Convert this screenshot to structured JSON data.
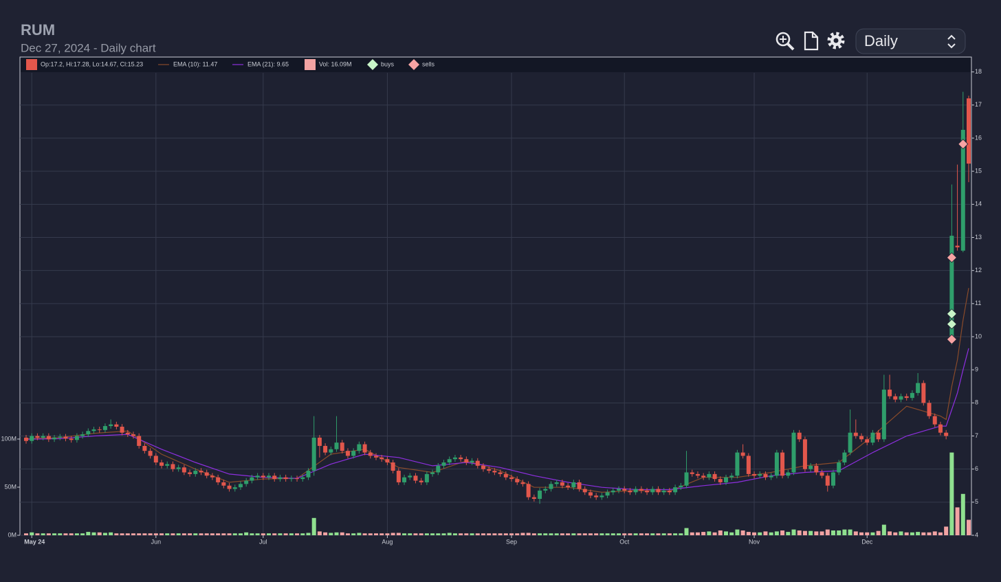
{
  "controls": {
    "period": "Daily"
  },
  "chart_data": {
    "type": "candlestick",
    "title": "RUM",
    "subtitle": "Dec 27, 2024 - Daily chart",
    "categories": [
      null,
      "May 24",
      null,
      null,
      null,
      null,
      null,
      null,
      null,
      null,
      null,
      null,
      null,
      null,
      null,
      null,
      null,
      null,
      null,
      null,
      null,
      null,
      null,
      "Jun",
      null,
      null,
      null,
      null,
      null,
      null,
      null,
      null,
      null,
      null,
      null,
      null,
      null,
      null,
      null,
      null,
      null,
      null,
      "Jul",
      null,
      null,
      null,
      null,
      null,
      null,
      null,
      null,
      null,
      null,
      null,
      null,
      null,
      null,
      null,
      null,
      null,
      null,
      null,
      null,
      null,
      "Aug",
      null,
      null,
      null,
      null,
      null,
      null,
      null,
      null,
      null,
      null,
      null,
      null,
      null,
      null,
      null,
      null,
      null,
      null,
      null,
      null,
      null,
      "Sep",
      null,
      null,
      null,
      null,
      null,
      null,
      null,
      null,
      null,
      null,
      null,
      null,
      null,
      null,
      null,
      null,
      null,
      null,
      null,
      "Oct",
      null,
      null,
      null,
      null,
      null,
      null,
      null,
      null,
      null,
      null,
      null,
      null,
      null,
      null,
      null,
      null,
      null,
      null,
      null,
      null,
      null,
      null,
      "Nov",
      null,
      null,
      null,
      null,
      null,
      null,
      null,
      null,
      null,
      null,
      null,
      null,
      null,
      null,
      null,
      null,
      null,
      null,
      null,
      "Dec",
      null,
      null,
      null,
      null,
      null,
      null,
      null,
      null,
      null,
      null,
      null,
      null,
      null,
      null,
      null,
      null,
      null,
      null
    ],
    "ylim": [
      4,
      18.45
    ],
    "yticks": [
      4,
      5,
      6,
      7,
      8,
      9,
      10,
      11,
      12,
      13,
      14,
      15,
      16,
      17,
      18
    ],
    "y2lim": [
      0,
      497
    ],
    "y2ticks": [
      {
        "value": 0,
        "label": "0M"
      },
      {
        "value": 50,
        "label": "50M"
      },
      {
        "value": 100,
        "label": "100M"
      }
    ],
    "grid": true,
    "candles": {
      "name": "Op:17.2, Hi:17.28, Lo:14.67, Cl:15.23",
      "up_color": "#2f9e6b",
      "down_color": "#e2574c",
      "open": [
        6.95,
        6.85,
        7.0,
        6.95,
        7.0,
        6.9,
        6.95,
        6.98,
        6.92,
        6.88,
        7.0,
        7.05,
        7.15,
        7.2,
        7.18,
        7.3,
        7.35,
        7.28,
        7.1,
        7.05,
        7.0,
        6.7,
        6.55,
        6.4,
        6.2,
        6.1,
        6.15,
        6.0,
        6.05,
        5.9,
        5.85,
        5.95,
        5.9,
        5.8,
        5.75,
        5.6,
        5.5,
        5.4,
        5.45,
        5.55,
        5.65,
        5.75,
        5.8,
        5.75,
        5.8,
        5.7,
        5.75,
        5.7,
        5.72,
        5.7,
        5.75,
        5.95,
        6.95,
        6.7,
        6.5,
        6.6,
        6.8,
        6.55,
        6.4,
        6.55,
        6.75,
        6.5,
        6.4,
        6.35,
        6.3,
        6.2,
        5.95,
        5.6,
        5.75,
        5.8,
        5.65,
        5.6,
        5.85,
        5.9,
        6.1,
        6.2,
        6.3,
        6.35,
        6.3,
        6.2,
        6.25,
        6.1,
        6.0,
        5.95,
        5.9,
        5.85,
        5.75,
        5.7,
        5.6,
        5.55,
        5.15,
        5.1,
        5.35,
        5.4,
        5.55,
        5.6,
        5.5,
        5.45,
        5.6,
        5.4,
        5.3,
        5.2,
        5.15,
        5.2,
        5.3,
        5.35,
        5.4,
        5.35,
        5.3,
        5.4,
        5.35,
        5.3,
        5.4,
        5.3,
        5.35,
        5.3,
        5.45,
        5.5,
        5.9,
        5.85,
        5.8,
        5.75,
        5.85,
        5.7,
        5.6,
        5.75,
        5.8,
        6.5,
        6.4,
        5.85,
        5.8,
        5.85,
        5.75,
        5.8,
        6.5,
        5.8,
        5.9,
        7.1,
        6.9,
        6.0,
        6.1,
        5.9,
        5.8,
        5.5,
        5.9,
        6.2,
        6.5,
        7.1,
        7.0,
        6.9,
        6.8,
        7.1,
        6.9,
        8.4,
        8.2,
        8.1,
        8.2,
        8.15,
        8.3,
        8.6,
        8.0,
        7.6,
        7.35,
        7.1,
        10.0,
        12.75,
        12.6,
        17.2
      ],
      "high": [
        7.03,
        7.08,
        7.08,
        7.08,
        7.08,
        7.03,
        7.06,
        7.06,
        7.0,
        7.08,
        7.13,
        7.23,
        7.28,
        7.28,
        7.38,
        7.5,
        7.43,
        7.36,
        7.18,
        7.13,
        7.08,
        6.78,
        6.63,
        6.48,
        6.28,
        6.23,
        6.23,
        6.13,
        6.13,
        5.98,
        6.03,
        6.03,
        5.98,
        5.88,
        5.83,
        5.68,
        5.58,
        5.53,
        5.63,
        5.73,
        5.83,
        5.88,
        5.88,
        5.88,
        5.88,
        5.83,
        5.83,
        5.8,
        5.8,
        5.83,
        6.03,
        7.6,
        7.03,
        6.78,
        6.68,
        7.6,
        6.88,
        6.63,
        6.63,
        6.83,
        6.83,
        6.58,
        6.48,
        6.43,
        6.38,
        6.28,
        6.03,
        5.83,
        5.88,
        5.88,
        5.73,
        5.93,
        5.98,
        6.18,
        6.28,
        6.38,
        6.43,
        6.43,
        6.38,
        6.33,
        6.33,
        6.18,
        6.08,
        6.03,
        5.98,
        5.93,
        5.83,
        5.78,
        5.68,
        5.63,
        5.23,
        5.43,
        5.48,
        5.63,
        5.68,
        5.68,
        5.58,
        5.68,
        5.68,
        5.48,
        5.38,
        5.28,
        5.28,
        5.38,
        5.43,
        5.48,
        5.48,
        5.43,
        5.48,
        5.48,
        5.43,
        5.48,
        5.48,
        5.43,
        5.43,
        5.53,
        5.58,
        6.55,
        5.98,
        5.93,
        5.88,
        5.93,
        5.93,
        5.78,
        5.83,
        5.88,
        6.58,
        6.75,
        6.48,
        5.93,
        5.93,
        5.93,
        5.88,
        6.58,
        6.58,
        5.98,
        7.18,
        7.18,
        6.98,
        6.18,
        6.18,
        5.98,
        5.88,
        5.98,
        6.28,
        6.58,
        7.8,
        7.5,
        7.08,
        6.98,
        7.18,
        7.18,
        8.85,
        8.85,
        8.28,
        8.28,
        8.28,
        8.38,
        8.9,
        8.68,
        8.08,
        7.68,
        7.43,
        7.18,
        14.6,
        15.2,
        17.4,
        17.28
      ],
      "low": [
        6.77,
        6.77,
        6.87,
        6.87,
        6.82,
        6.82,
        6.87,
        6.84,
        6.8,
        6.8,
        6.92,
        6.97,
        7.07,
        7.1,
        7.1,
        7.22,
        7.2,
        7.02,
        6.97,
        6.92,
        6.62,
        6.47,
        6.32,
        6.12,
        6.02,
        6.02,
        5.92,
        5.92,
        5.82,
        5.77,
        5.77,
        5.82,
        5.72,
        5.67,
        5.52,
        5.42,
        5.32,
        5.32,
        5.37,
        5.47,
        5.57,
        5.67,
        5.67,
        5.67,
        5.62,
        5.62,
        5.62,
        5.62,
        5.62,
        5.62,
        5.67,
        5.8,
        6.35,
        6.42,
        6.42,
        6.52,
        6.47,
        6.32,
        6.32,
        6.47,
        6.42,
        6.32,
        6.27,
        6.22,
        6.12,
        5.87,
        5.52,
        5.52,
        5.67,
        5.57,
        5.52,
        5.52,
        5.77,
        5.82,
        6.02,
        6.12,
        6.22,
        6.22,
        6.12,
        6.12,
        6.02,
        5.92,
        5.87,
        5.82,
        5.77,
        5.67,
        5.62,
        5.52,
        5.47,
        5.07,
        5.02,
        4.95,
        5.27,
        5.32,
        5.47,
        5.42,
        5.37,
        5.37,
        5.32,
        5.22,
        5.12,
        5.07,
        5.07,
        5.12,
        5.22,
        5.27,
        5.27,
        5.22,
        5.22,
        5.27,
        5.22,
        5.22,
        5.22,
        5.22,
        5.22,
        5.22,
        5.37,
        5.42,
        5.77,
        5.72,
        5.67,
        5.67,
        5.62,
        5.52,
        5.52,
        5.67,
        5.72,
        6.32,
        5.77,
        5.72,
        5.72,
        5.67,
        5.67,
        5.72,
        5.72,
        5.72,
        5.82,
        6.82,
        5.92,
        5.92,
        5.82,
        5.72,
        5.32,
        5.42,
        5.82,
        6.12,
        6.42,
        6.92,
        6.82,
        6.72,
        6.72,
        6.82,
        6.82,
        8.12,
        8.02,
        8.02,
        8.07,
        8.07,
        8.22,
        7.92,
        7.52,
        7.27,
        7.02,
        6.9,
        9.75,
        12.6,
        12.55,
        14.67
      ],
      "close": [
        6.85,
        7.0,
        6.95,
        7.0,
        6.9,
        6.95,
        6.98,
        6.92,
        6.88,
        7.0,
        7.05,
        7.15,
        7.2,
        7.18,
        7.3,
        7.35,
        7.28,
        7.1,
        7.05,
        7.0,
        6.7,
        6.55,
        6.4,
        6.2,
        6.1,
        6.15,
        6.0,
        6.05,
        5.9,
        5.85,
        5.95,
        5.9,
        5.8,
        5.75,
        5.6,
        5.5,
        5.4,
        5.45,
        5.55,
        5.65,
        5.75,
        5.8,
        5.75,
        5.8,
        5.7,
        5.75,
        5.7,
        5.72,
        5.7,
        5.75,
        5.95,
        6.95,
        6.7,
        6.5,
        6.6,
        6.8,
        6.55,
        6.4,
        6.55,
        6.75,
        6.5,
        6.4,
        6.35,
        6.3,
        6.2,
        5.95,
        5.6,
        5.75,
        5.8,
        5.65,
        5.6,
        5.85,
        5.9,
        6.1,
        6.2,
        6.3,
        6.35,
        6.3,
        6.2,
        6.25,
        6.1,
        6.0,
        5.95,
        5.9,
        5.85,
        5.75,
        5.7,
        5.6,
        5.55,
        5.15,
        5.1,
        5.35,
        5.4,
        5.55,
        5.6,
        5.5,
        5.45,
        5.6,
        5.4,
        5.3,
        5.2,
        5.15,
        5.2,
        5.3,
        5.35,
        5.4,
        5.35,
        5.3,
        5.4,
        5.35,
        5.3,
        5.4,
        5.3,
        5.35,
        5.3,
        5.45,
        5.5,
        5.9,
        5.85,
        5.8,
        5.75,
        5.85,
        5.7,
        5.6,
        5.75,
        5.8,
        6.5,
        6.4,
        5.85,
        5.8,
        5.85,
        5.75,
        5.8,
        6.5,
        5.8,
        5.9,
        7.1,
        6.9,
        6.0,
        6.1,
        5.9,
        5.8,
        5.5,
        5.9,
        6.2,
        6.5,
        7.1,
        7.0,
        6.9,
        6.8,
        7.1,
        6.9,
        8.4,
        8.2,
        8.1,
        8.2,
        8.15,
        8.3,
        8.6,
        8.0,
        7.6,
        7.35,
        7.1,
        7.0,
        13.05,
        12.7,
        16.25,
        15.23
      ]
    },
    "volume": {
      "name": "Vol: 16.09M",
      "axis": "y2",
      "up_color": "#8fe08f",
      "down_color": "#f2a3a3",
      "values": [
        2,
        3,
        2,
        2,
        2,
        2,
        2,
        2,
        2,
        2,
        2,
        3.5,
        3,
        3,
        2.5,
        3,
        2,
        2,
        2,
        2,
        2,
        2,
        2,
        2,
        2,
        2,
        2,
        2,
        2,
        2,
        2,
        2,
        2,
        2,
        2,
        2,
        2,
        2,
        2,
        3,
        2,
        2,
        2,
        2,
        2,
        2,
        2,
        2,
        2,
        2,
        2.5,
        18,
        4,
        3,
        2.5,
        3,
        3,
        2,
        2,
        2.5,
        2,
        2,
        2,
        2,
        2,
        2.5,
        2.5,
        2,
        2,
        2,
        2,
        2,
        2,
        2,
        2,
        2.5,
        2,
        2,
        2,
        2,
        2,
        2,
        2,
        2,
        2,
        2,
        2,
        2,
        2.5,
        2.5,
        2,
        2,
        2,
        2,
        2,
        2,
        2,
        2,
        2,
        2,
        2,
        2,
        2,
        2,
        2,
        2,
        2,
        2,
        2,
        2,
        2,
        2,
        2,
        2,
        2,
        2,
        2,
        7.5,
        3,
        3,
        3.5,
        4,
        3,
        5,
        4,
        3,
        6,
        5,
        3.5,
        3,
        3,
        4,
        3,
        4,
        5,
        3.5,
        6,
        5,
        4.5,
        4.5,
        4,
        4,
        6,
        5,
        5,
        6,
        6,
        4,
        3,
        3,
        3,
        4.5,
        11,
        4,
        3,
        4,
        3,
        3,
        3.5,
        3,
        3,
        4,
        3,
        9,
        86,
        29,
        43,
        16.09
      ]
    },
    "lines": [
      {
        "name": "EMA (10): 11.47",
        "color": "#8a4b2a",
        "x": [
          0,
          6,
          12,
          18,
          24,
          30,
          36,
          42,
          48,
          54,
          60,
          66,
          72,
          78,
          84,
          90,
          96,
          102,
          108,
          114,
          120,
          126,
          132,
          138,
          144,
          150,
          156,
          162,
          163,
          164,
          165,
          166,
          167
        ],
        "values": [
          6.92,
          6.95,
          7.08,
          7.15,
          6.45,
          6.0,
          5.6,
          5.7,
          5.72,
          6.45,
          6.6,
          6.05,
          5.9,
          6.25,
          5.95,
          5.45,
          5.45,
          5.3,
          5.35,
          5.33,
          5.75,
          5.75,
          5.9,
          6.1,
          6.2,
          7.0,
          7.9,
          7.6,
          7.5,
          8.5,
          9.3,
          10.5,
          11.47
        ]
      },
      {
        "name": "EMA (21): 9.65",
        "color": "#8e2fe0",
        "x": [
          0,
          6,
          12,
          18,
          24,
          30,
          36,
          42,
          48,
          54,
          60,
          66,
          72,
          78,
          84,
          90,
          96,
          102,
          108,
          114,
          120,
          126,
          132,
          138,
          144,
          150,
          156,
          162,
          163,
          164,
          165,
          166,
          167
        ],
        "values": [
          6.9,
          6.92,
          7.0,
          7.05,
          6.6,
          6.2,
          5.85,
          5.75,
          5.72,
          6.15,
          6.45,
          6.35,
          6.1,
          6.2,
          6.05,
          5.8,
          5.6,
          5.45,
          5.38,
          5.38,
          5.5,
          5.6,
          5.8,
          5.9,
          5.95,
          6.5,
          7.0,
          7.3,
          7.3,
          7.8,
          8.3,
          9.0,
          9.65
        ]
      }
    ],
    "markers": [
      {
        "name": "buys",
        "color": "#c8f5c8",
        "x": [
          164,
          164
        ],
        "values": [
          10.69,
          10.38
        ]
      },
      {
        "name": "sells",
        "color": "#f7a3a3",
        "x": [
          164,
          164,
          166
        ],
        "values": [
          12.39,
          9.92,
          15.82
        ]
      }
    ]
  }
}
